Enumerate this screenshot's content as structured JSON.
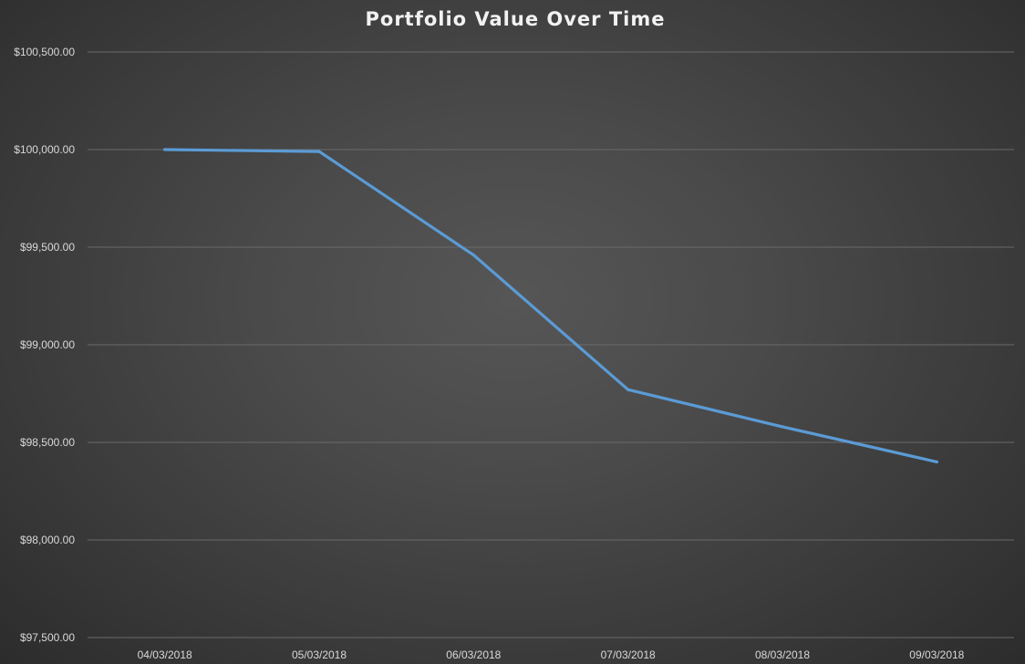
{
  "chart_data": {
    "type": "line",
    "title": "Portfolio Value Over Time",
    "xlabel": "",
    "ylabel": "",
    "categories": [
      "04/03/2018",
      "05/03/2018",
      "06/03/2018",
      "07/03/2018",
      "08/03/2018",
      "09/03/2018"
    ],
    "series": [
      {
        "values": [
          100000,
          99990,
          99460,
          98770,
          98580,
          98400
        ]
      }
    ],
    "ylim": [
      97500,
      100500
    ],
    "yticks": [
      97500,
      98000,
      98500,
      99000,
      99500,
      100000,
      100500
    ],
    "ytick_labels": [
      "$97,500.00",
      "$98,000.00",
      "$98,500.00",
      "$99,000.00",
      "$99,500.00",
      "$100,000.00",
      "$100,500.00"
    ],
    "grid": true,
    "legend": "none",
    "colors": {
      "line": "#5b9bd5",
      "grid": "#6a6a6a",
      "text": "#d9d9d9",
      "title": "#f2f2f2"
    }
  }
}
